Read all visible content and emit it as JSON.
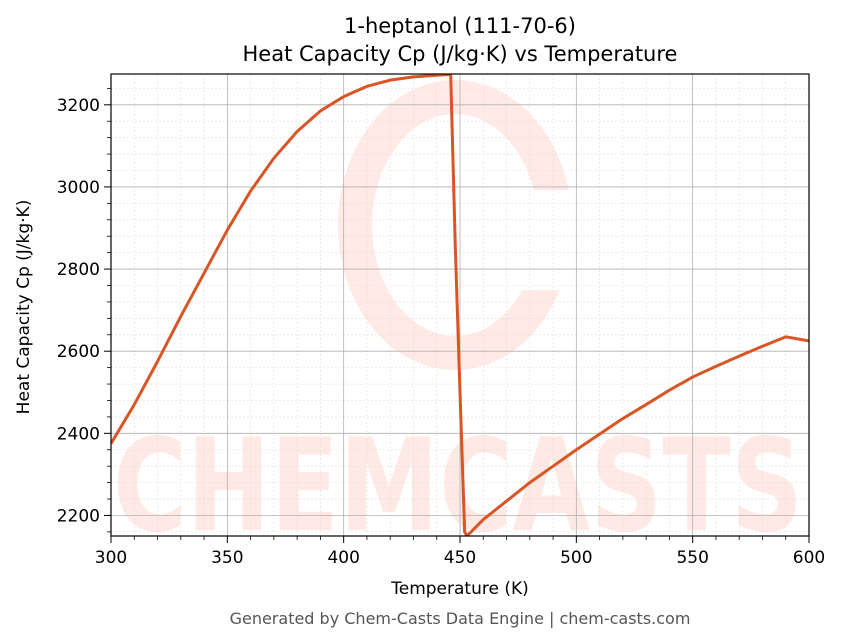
{
  "title_line1": "1-heptanol (111-70-6)",
  "title_line2": "Heat Capacity Cp (J/kg·K) vs Temperature",
  "footer": "Generated by Chem-Casts Data Engine | chem-casts.com",
  "watermark_text": "CHEMCASTS",
  "colors": {
    "line": "#d95525",
    "watermark": "#ff6a4d",
    "grid_major": "#b0b0b0",
    "grid_minor": "#dddddd"
  },
  "chart_data": {
    "type": "line",
    "xlabel": "Temperature (K)",
    "ylabel": "Heat Capacity Cp (J/kg·K)",
    "xlim": [
      300,
      600
    ],
    "ylim": [
      2150,
      3275
    ],
    "grid": true,
    "minor_grid": true,
    "x_ticks": [
      300,
      350,
      400,
      450,
      500,
      550,
      600
    ],
    "y_ticks": [
      2200,
      2400,
      2600,
      2800,
      3000,
      3200
    ],
    "series": [
      {
        "color": "#d95525",
        "x": [
          300,
          310,
          320,
          330,
          340,
          350,
          360,
          370,
          380,
          390,
          400,
          410,
          420,
          430,
          440,
          446,
          448,
          450,
          452,
          453,
          460,
          470,
          480,
          490,
          500,
          510,
          520,
          530,
          540,
          550,
          560,
          570,
          580,
          590,
          600
        ],
        "y": [
          2375,
          2470,
          2575,
          2685,
          2790,
          2895,
          2990,
          3070,
          3135,
          3185,
          3220,
          3245,
          3260,
          3268,
          3272,
          3274,
          2850,
          2500,
          2160,
          2150,
          2190,
          2235,
          2280,
          2320,
          2360,
          2398,
          2436,
          2470,
          2505,
          2537,
          2563,
          2588,
          2612,
          2635,
          2625
        ]
      }
    ]
  }
}
